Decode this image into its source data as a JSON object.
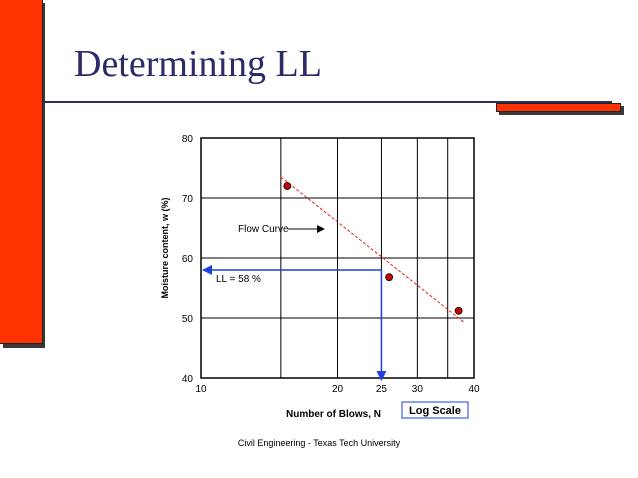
{
  "slide": {
    "title": "Determining LL",
    "footer": "Civil Engineering - Texas Tech University",
    "colors": {
      "accent": "#ff3300",
      "title": "#2b2b6b",
      "arrow": "#1f3fe0",
      "curve": "#e02020",
      "point": "#cc0000"
    }
  },
  "chart_data": {
    "type": "scatter",
    "title": "",
    "xlabel": "Number of Blows, N",
    "ylabel": "Moisture content, w (%)",
    "x_scale": "log",
    "xlim": [
      10,
      40
    ],
    "ylim": [
      40,
      80
    ],
    "x_ticks": [
      10,
      20,
      25,
      30,
      40
    ],
    "x_tick_labels": [
      "10",
      "20",
      "25",
      "30",
      "40"
    ],
    "y_ticks": [
      40,
      50,
      60,
      70,
      80
    ],
    "y_tick_labels": [
      "40",
      "50",
      "60",
      "70",
      "80"
    ],
    "grid": true,
    "series": [
      {
        "points": [
          {
            "x": 15.5,
            "y": 72
          },
          {
            "x": 26,
            "y": 56.8
          },
          {
            "x": 37,
            "y": 51.2
          }
        ]
      }
    ],
    "flow_curve": {
      "from": {
        "x": 15,
        "y": 73.5
      },
      "to": {
        "x": 38,
        "y": 49.3
      }
    },
    "annotations": {
      "flow_curve_label": "Flow  Curve",
      "ll_label": "LL = 58 %",
      "log_scale_label": "Log Scale"
    },
    "liquid_limit": {
      "n": 25,
      "w": 58
    }
  }
}
